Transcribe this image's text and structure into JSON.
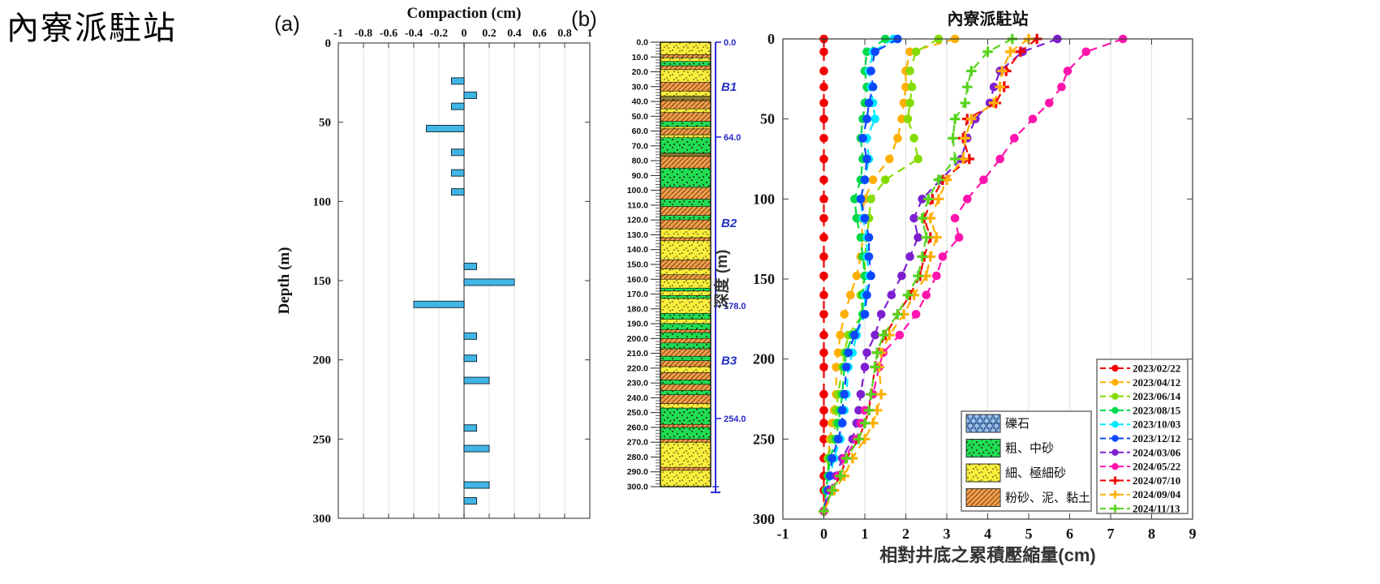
{
  "page_title": "內寮派駐站",
  "panel_a_label": "(a)",
  "panel_b_label": "(b)",
  "colors": {
    "bar_fill": "#41b6e6",
    "bar_edge": "#16303d",
    "grid": "#e0e0e0",
    "axis": "#3a3a3a",
    "strat_accent_blue": "#2b2bdb",
    "zone_label_blue": "#2233c0"
  },
  "chart_data": [
    {
      "id": "compaction-increment-bars",
      "type": "bar",
      "orientation": "horizontal",
      "title": "Compaction (cm)",
      "ylabel": "Depth (m)",
      "xlim": [
        -1,
        1
      ],
      "xticks": [
        -1,
        -0.8,
        -0.6,
        -0.4,
        -0.2,
        0,
        0.2,
        0.4,
        0.6,
        0.8,
        1
      ],
      "xtick_labels": [
        "-1",
        "-0.8",
        "-0.6",
        "-0.4",
        "-0.2",
        "0",
        "0.2",
        "0.4",
        "0.6",
        "0.8",
        "1"
      ],
      "ylim": [
        0,
        300
      ],
      "yticks": [
        0,
        50,
        100,
        150,
        200,
        250,
        300
      ],
      "grid": "vertical",
      "bar_color": "#41b6e6",
      "bars": [
        {
          "depth": 24,
          "value": -0.1
        },
        {
          "depth": 33,
          "value": 0.1
        },
        {
          "depth": 40,
          "value": -0.1
        },
        {
          "depth": 54,
          "value": -0.3
        },
        {
          "depth": 69,
          "value": -0.1
        },
        {
          "depth": 82,
          "value": -0.1
        },
        {
          "depth": 94,
          "value": -0.1
        },
        {
          "depth": 141,
          "value": 0.1
        },
        {
          "depth": 151,
          "value": 0.4
        },
        {
          "depth": 165,
          "value": -0.4
        },
        {
          "depth": 185,
          "value": 0.1
        },
        {
          "depth": 199,
          "value": 0.1
        },
        {
          "depth": 213,
          "value": 0.2
        },
        {
          "depth": 243,
          "value": 0.1
        },
        {
          "depth": 256,
          "value": 0.2
        },
        {
          "depth": 279,
          "value": 0.2
        },
        {
          "depth": 289,
          "value": 0.1
        }
      ]
    },
    {
      "id": "strat-column",
      "type": "strat-column",
      "depth_min": 0,
      "depth_max": 300,
      "tick_step": 10,
      "minor_tick_step": 2,
      "right_markers": [
        {
          "depth": 0,
          "label": "0.0"
        },
        {
          "depth": 64,
          "label": "64.0"
        },
        {
          "depth": 178,
          "label": "178.0"
        },
        {
          "depth": 254,
          "label": "254.0"
        }
      ],
      "zones": [
        {
          "label": "B1",
          "depth": 30
        },
        {
          "label": "B2",
          "depth": 122
        },
        {
          "label": "B3",
          "depth": 215
        }
      ],
      "lithology": {
        "gravel": {
          "label": "礫石",
          "color": "#7aaede",
          "pattern": "circles"
        },
        "coarse": {
          "label": "粗、中砂",
          "color": "#1fdc52",
          "pattern": "dots"
        },
        "fine": {
          "label": "細、極細砂",
          "color": "#f9ee3b",
          "pattern": "dots"
        },
        "clay": {
          "label": "粉砂、泥、黏土",
          "color": "#f2a04f",
          "pattern": "hatch"
        },
        "dark": {
          "label": "",
          "color": "#8c7b2f",
          "pattern": "dots"
        }
      },
      "layers": [
        {
          "from": 0,
          "to": 8.5,
          "type": "fine"
        },
        {
          "from": 8.5,
          "to": 10.5,
          "type": "clay"
        },
        {
          "from": 10.5,
          "to": 13,
          "type": "fine"
        },
        {
          "from": 13,
          "to": 16,
          "type": "coarse"
        },
        {
          "from": 16,
          "to": 18.5,
          "type": "clay"
        },
        {
          "from": 18.5,
          "to": 27,
          "type": "fine"
        },
        {
          "from": 27,
          "to": 33,
          "type": "clay"
        },
        {
          "from": 33,
          "to": 36.5,
          "type": "fine"
        },
        {
          "from": 36.5,
          "to": 39.5,
          "type": "dark"
        },
        {
          "from": 39.5,
          "to": 45,
          "type": "clay"
        },
        {
          "from": 45,
          "to": 47.5,
          "type": "fine"
        },
        {
          "from": 47.5,
          "to": 53.5,
          "type": "clay"
        },
        {
          "from": 53.5,
          "to": 57,
          "type": "coarse"
        },
        {
          "from": 57,
          "to": 58.5,
          "type": "fine"
        },
        {
          "from": 58.5,
          "to": 62.5,
          "type": "clay"
        },
        {
          "from": 62.5,
          "to": 64.5,
          "type": "fine"
        },
        {
          "from": 64.5,
          "to": 75,
          "type": "coarse"
        },
        {
          "from": 75,
          "to": 77,
          "type": "dark"
        },
        {
          "from": 77,
          "to": 85,
          "type": "clay"
        },
        {
          "from": 85,
          "to": 98,
          "type": "coarse"
        },
        {
          "from": 98,
          "to": 106,
          "type": "clay"
        },
        {
          "from": 106,
          "to": 111,
          "type": "coarse"
        },
        {
          "from": 111,
          "to": 117,
          "type": "clay"
        },
        {
          "from": 117,
          "to": 120,
          "type": "coarse"
        },
        {
          "from": 120,
          "to": 126,
          "type": "clay"
        },
        {
          "from": 126,
          "to": 132,
          "type": "fine"
        },
        {
          "from": 132,
          "to": 134,
          "type": "clay"
        },
        {
          "from": 134,
          "to": 147,
          "type": "fine"
        },
        {
          "from": 147,
          "to": 153,
          "type": "clay"
        },
        {
          "from": 153,
          "to": 157,
          "type": "fine"
        },
        {
          "from": 157,
          "to": 160,
          "type": "clay"
        },
        {
          "from": 160,
          "to": 166,
          "type": "fine"
        },
        {
          "from": 166,
          "to": 168,
          "type": "coarse"
        },
        {
          "from": 168,
          "to": 171,
          "type": "fine"
        },
        {
          "from": 171,
          "to": 173,
          "type": "coarse"
        },
        {
          "from": 173,
          "to": 183,
          "type": "fine"
        },
        {
          "from": 183,
          "to": 187,
          "type": "coarse"
        },
        {
          "from": 187,
          "to": 190,
          "type": "fine"
        },
        {
          "from": 190,
          "to": 194,
          "type": "coarse"
        },
        {
          "from": 194,
          "to": 196,
          "type": "clay"
        },
        {
          "from": 196,
          "to": 200,
          "type": "coarse"
        },
        {
          "from": 200,
          "to": 203,
          "type": "clay"
        },
        {
          "from": 203,
          "to": 207,
          "type": "coarse"
        },
        {
          "from": 207,
          "to": 212,
          "type": "clay"
        },
        {
          "from": 212,
          "to": 215,
          "type": "coarse"
        },
        {
          "from": 215,
          "to": 219,
          "type": "clay"
        },
        {
          "from": 219,
          "to": 223,
          "type": "fine"
        },
        {
          "from": 223,
          "to": 228,
          "type": "clay"
        },
        {
          "from": 228,
          "to": 231,
          "type": "coarse"
        },
        {
          "from": 231,
          "to": 235,
          "type": "clay"
        },
        {
          "from": 235,
          "to": 238,
          "type": "coarse"
        },
        {
          "from": 238,
          "to": 244,
          "type": "clay"
        },
        {
          "from": 244,
          "to": 247,
          "type": "fine"
        },
        {
          "from": 247,
          "to": 258,
          "type": "coarse"
        },
        {
          "from": 258,
          "to": 260,
          "type": "clay"
        },
        {
          "from": 260,
          "to": 268,
          "type": "coarse"
        },
        {
          "from": 268,
          "to": 270,
          "type": "clay"
        },
        {
          "from": 270,
          "to": 287,
          "type": "fine"
        },
        {
          "from": 287,
          "to": 289,
          "type": "clay"
        },
        {
          "from": 289,
          "to": 300,
          "type": "fine"
        }
      ]
    },
    {
      "id": "cumulative-compaction-profiles",
      "type": "line",
      "title": "內寮派駐站",
      "xlabel": "相對井底之累積壓縮量(cm)",
      "ylabel": "深度 (m)",
      "xlim": [
        -1,
        9
      ],
      "xticks": [
        -1,
        0,
        1,
        2,
        3,
        4,
        5,
        6,
        7,
        8,
        9
      ],
      "ylim": [
        0,
        300
      ],
      "yticks": [
        0,
        50,
        100,
        150,
        200,
        250,
        300
      ],
      "y_inverted": true,
      "grid": "vertical",
      "legend_position": "lower right",
      "litho_legend": [
        "gravel",
        "coarse",
        "fine",
        "clay"
      ],
      "depths": [
        0,
        8,
        20,
        30,
        40,
        50,
        62,
        75,
        88,
        100,
        112,
        124,
        136,
        148,
        160,
        172,
        185,
        196,
        205,
        222,
        232,
        240,
        250,
        262,
        273,
        282,
        295
      ],
      "series": [
        {
          "name": "2023/02/22",
          "color": "#f20000",
          "marker": "circle",
          "values": [
            0,
            0,
            0,
            0,
            0,
            0,
            0,
            0,
            0,
            0,
            0,
            0,
            0,
            0,
            0,
            0,
            0,
            0,
            0,
            0,
            0,
            0,
            0,
            0,
            0,
            0,
            0
          ]
        },
        {
          "name": "2023/04/12",
          "color": "#ffaf00",
          "marker": "circle",
          "values": [
            3.2,
            2.1,
            2.0,
            2.0,
            1.95,
            1.9,
            1.8,
            1.6,
            1.2,
            1.0,
            0.9,
            0.95,
            0.9,
            0.8,
            0.65,
            0.5,
            0.4,
            0.35,
            0.3,
            0.3,
            0.25,
            0.2,
            0.15,
            0.1,
            0.1,
            0.05,
            0
          ]
        },
        {
          "name": "2023/06/14",
          "color": "#84dc00",
          "marker": "circle",
          "values": [
            2.8,
            2.25,
            2.1,
            2.15,
            2.1,
            2.05,
            2.2,
            2.3,
            1.5,
            1.15,
            1.1,
            1.05,
            1.0,
            1.0,
            0.9,
            0.95,
            0.6,
            0.5,
            0.45,
            0.35,
            0.3,
            0.3,
            0.2,
            0.1,
            0.1,
            0.05,
            0
          ]
        },
        {
          "name": "2023/08/15",
          "color": "#00d948",
          "marker": "circle",
          "values": [
            1.5,
            1.05,
            1.0,
            1.05,
            1.0,
            0.95,
            0.9,
            0.95,
            0.9,
            0.75,
            0.8,
            0.9,
            0.95,
            1.0,
            0.95,
            0.95,
            0.7,
            0.55,
            0.5,
            0.45,
            0.4,
            0.35,
            0.3,
            0.15,
            0.1,
            0.05,
            0
          ]
        },
        {
          "name": "2023/10/03",
          "color": "#00eaff",
          "marker": "circle",
          "values": [
            1.7,
            1.2,
            1.1,
            1.15,
            1.2,
            1.25,
            1.05,
            1.1,
            1.0,
            0.9,
            0.95,
            1.05,
            1.05,
            1.1,
            1.0,
            1.0,
            0.8,
            0.7,
            0.6,
            0.55,
            0.5,
            0.45,
            0.4,
            0.25,
            0.15,
            0.1,
            0
          ]
        },
        {
          "name": "2023/12/12",
          "color": "#0a48ff",
          "marker": "circle",
          "values": [
            1.8,
            1.25,
            1.15,
            1.2,
            1.1,
            1.05,
            0.95,
            1.05,
            1.0,
            0.9,
            1.0,
            1.1,
            1.1,
            1.15,
            1.05,
            1.0,
            0.75,
            0.6,
            0.55,
            0.5,
            0.45,
            0.45,
            0.35,
            0.2,
            0.15,
            0.1,
            0
          ]
        },
        {
          "name": "2024/03/06",
          "color": "#7d1fd1",
          "marker": "circle",
          "values": [
            5.7,
            4.85,
            4.3,
            4.15,
            4.05,
            3.7,
            3.5,
            3.35,
            2.85,
            2.4,
            2.2,
            2.3,
            2.1,
            1.9,
            1.65,
            1.4,
            1.25,
            1.05,
            1.0,
            0.9,
            0.85,
            0.8,
            0.7,
            0.45,
            0.3,
            0.15,
            0
          ]
        },
        {
          "name": "2024/05/22",
          "color": "#ff14ae",
          "marker": "circle",
          "values": [
            7.3,
            6.4,
            5.95,
            5.8,
            5.5,
            5.1,
            4.65,
            4.3,
            3.9,
            3.5,
            3.2,
            3.3,
            2.9,
            2.75,
            2.5,
            2.25,
            1.85,
            1.45,
            1.35,
            1.2,
            1.0,
            0.9,
            0.8,
            0.5,
            0.35,
            0.2,
            0
          ]
        },
        {
          "name": "2024/07/10",
          "color": "#f20000",
          "marker": "plus",
          "values": [
            5.2,
            4.8,
            4.45,
            4.4,
            4.2,
            3.5,
            3.4,
            3.55,
            2.9,
            2.65,
            2.45,
            2.6,
            2.45,
            2.35,
            2.1,
            1.8,
            1.5,
            1.3,
            1.25,
            1.15,
            1.1,
            1.0,
            0.85,
            0.55,
            0.4,
            0.2,
            0
          ]
        },
        {
          "name": "2024/09/04",
          "color": "#ffaf00",
          "marker": "plus",
          "values": [
            5.0,
            4.55,
            4.35,
            4.3,
            4.15,
            3.6,
            3.45,
            3.4,
            3.0,
            2.8,
            2.6,
            2.75,
            2.6,
            2.5,
            2.2,
            1.95,
            1.6,
            1.4,
            1.35,
            1.4,
            1.3,
            1.2,
            1.0,
            0.7,
            0.5,
            0.25,
            0
          ]
        },
        {
          "name": "2024/11/13",
          "color": "#58d41e",
          "marker": "plus",
          "values": [
            4.6,
            4.0,
            3.6,
            3.5,
            3.45,
            3.2,
            3.15,
            3.2,
            2.8,
            2.55,
            2.4,
            2.5,
            2.4,
            2.3,
            2.05,
            1.8,
            1.45,
            1.3,
            1.25,
            1.15,
            1.1,
            1.0,
            0.85,
            0.55,
            0.4,
            0.2,
            0
          ]
        }
      ]
    }
  ]
}
